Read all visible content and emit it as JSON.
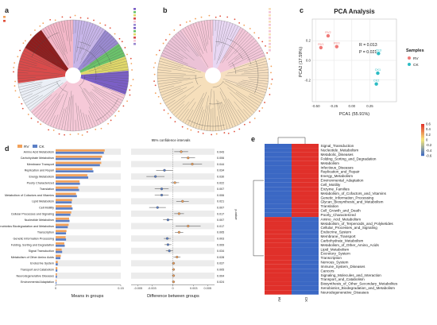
{
  "panel_letters": [
    "a",
    "b",
    "c",
    "d",
    "e"
  ],
  "chart_data": [
    {
      "panel": "c",
      "type": "scatter",
      "title": "PCA Analysis",
      "xlabel": "PCA1 (55.91%)",
      "ylabel": "PCA2 (17.59%)",
      "xlim": [
        -0.55,
        0.62
      ],
      "ylim": [
        -0.42,
        0.42
      ],
      "x_ticks": [
        "-0.50",
        "-0.25",
        "0.00",
        "0.25"
      ],
      "y_ticks": [
        "-0.2",
        "0.0",
        "0.2"
      ],
      "annotations": [
        "R = 0.013",
        "P = 0.021"
      ],
      "legend_title": "Samples",
      "legend_position": "right",
      "series": [
        {
          "name": "RV",
          "color": "#f07a78",
          "points": [
            {
              "x": -0.43,
              "y": 0.13,
              "label": "RV1"
            },
            {
              "x": -0.33,
              "y": 0.25,
              "label": "RV2"
            },
            {
              "x": -0.21,
              "y": 0.14,
              "label": "RV3"
            }
          ]
        },
        {
          "name": "CK",
          "color": "#2cbcc4",
          "points": [
            {
              "x": 0.37,
              "y": 0.07,
              "label": "CK3"
            },
            {
              "x": 0.36,
              "y": -0.13,
              "label": "CK1"
            },
            {
              "x": 0.34,
              "y": -0.24,
              "label": "CK2"
            }
          ]
        }
      ]
    },
    {
      "panel": "d",
      "type": "bar",
      "xlabel_left": "Means in groups",
      "xlabel_right": "Difference between groups",
      "ci_title": "95% confidence intervals",
      "right_axis_label": "p-value",
      "left_xlim": [
        0,
        0.15
      ],
      "left_ticks": [
        "0",
        "0.15"
      ],
      "right_xlim": [
        -0.006,
        0.006
      ],
      "right_ticks": [
        "-0.005",
        "-0.003",
        "0",
        "0.003",
        "0.005"
      ],
      "legend": [
        {
          "name": "RV",
          "color": "#f2a15a"
        },
        {
          "name": "CK",
          "color": "#5b7fc6"
        }
      ],
      "categories": [
        "Amino Acid Metabolism",
        "Carbohydrate Metabolism",
        "Membrane Transport",
        "Replication and Repair",
        "Energy Metabolism",
        "Poorly Characterized",
        "Translation",
        "Metabolism of Cofactors and Vitamins",
        "Lipid Metabolism",
        "Cell Motility",
        "Cellular Processes and Signaling",
        "Nucleotide Metabolism",
        "Xenobiotics Biodegradation and Metabolism",
        "Transcription",
        "Genetic Information Processing",
        "Folding, Sorting and Degradation",
        "Signal Transduction",
        "Metabolism of Other Amino Acids",
        "Endocrine System",
        "Transport and Catabolism",
        "Neurodegenerative Diseases",
        "Environmental Adaptation"
      ],
      "rv_values": [
        0.113,
        0.107,
        0.105,
        0.085,
        0.073,
        0.055,
        0.052,
        0.047,
        0.038,
        0.037,
        0.036,
        0.031,
        0.03,
        0.025,
        0.023,
        0.02,
        0.014,
        0.012,
        0.005,
        0.004,
        0.003,
        0.002
      ],
      "ck_values": [
        0.111,
        0.104,
        0.102,
        0.087,
        0.075,
        0.056,
        0.054,
        0.049,
        0.037,
        0.039,
        0.034,
        0.032,
        0.028,
        0.024,
        0.024,
        0.021,
        0.015,
        0.011,
        0.005,
        0.004,
        0.003,
        0.002
      ],
      "difference": [
        0.0012,
        0.0022,
        0.0028,
        -0.0012,
        -0.0025,
        0.0003,
        -0.0016,
        -0.0016,
        0.0014,
        -0.0022,
        0.0009,
        -0.0007,
        0.0022,
        0.0009,
        -0.0008,
        -0.0007,
        -0.0005,
        0.0006,
        0.0001,
        0.0001,
        0.0001,
        0.0001
      ],
      "ci_low": [
        0.0002,
        0.0012,
        0.0014,
        -0.0024,
        -0.0038,
        -0.0003,
        -0.0026,
        -0.0026,
        0.0005,
        -0.0034,
        0.0002,
        -0.0014,
        0.0004,
        0.0003,
        -0.0013,
        -0.0012,
        -0.001,
        0.0001,
        -0.0001,
        -0.0001,
        -0.0001,
        -0.0001
      ],
      "ci_high": [
        0.0022,
        0.0032,
        0.0042,
        0.0,
        -0.0012,
        0.0009,
        -0.0006,
        -0.0006,
        0.0023,
        -0.001,
        0.0016,
        0.0,
        0.004,
        0.0015,
        -0.0003,
        -0.0002,
        0.0,
        0.0011,
        0.0003,
        0.0003,
        0.0003,
        0.0003
      ],
      "p_values": [
        "0.043",
        "0.006",
        "0.044",
        "0.034",
        "0.030",
        "0.022",
        "0.007",
        "0.006",
        "0.021",
        "0.007",
        "0.017",
        "0.007",
        "0.017",
        "0.005",
        "0.003",
        "0.009",
        "0.034",
        "0.028",
        "0.037",
        "0.005",
        "0.004",
        "0.024"
      ]
    },
    {
      "panel": "e",
      "type": "heatmap",
      "columns": [
        "RV",
        "CK"
      ],
      "color_scale": {
        "min": -0.6,
        "max": 0.6,
        "low_color": "#3b68c4",
        "mid_color": "#f6e77a",
        "high_color": "#e0302a"
      },
      "legend_ticks": [
        "0.6",
        "0.4",
        "0.2",
        "0",
        "-0.2",
        "-0.4",
        "-0.6"
      ],
      "rows": [
        "Signal_Transduction",
        "Nucleotide_Metabolism",
        "Metabolic_Diseases",
        "Folding_Sorting_and_Degradation",
        "Metabolism",
        "Infectious_Diseases",
        "Replication_and_Repair",
        "Energy_Metabolism",
        "Environmental_Adaptation",
        "Cell_Motility",
        "Enzyme_Families",
        "Metabolism_of_Cofactors_and_Vitamins",
        "Genetic_Information_Processing",
        "Glycan_Biosynthesis_and_Metabolism",
        "Translation",
        "Cell_Growth_and_Death",
        "Poorly_Characterized",
        "Amino_Acid_Metabolism",
        "Metabolism_of_Terpenoids_and_Polyketides",
        "Cellular_Processes_and_Signaling",
        "Endocrine_System",
        "Membrane_Transport",
        "Carbohydrate_Metabolism",
        "Metabolism_of_Other_Amino_Acids",
        "Lipid_Metabolism",
        "Excretory_System",
        "Transcription",
        "Nervous_System",
        "Immune_System_Diseases",
        "Cancers",
        "Signaling_Molecules_and_Interaction",
        "Transport_and_Catabolism",
        "Biosynthesis_of_Other_Secondary_Metabolites",
        "Xenobiotics_Biodegradation_and_Metabolism",
        "Neurodegenerative_Diseases"
      ],
      "values": [
        [
          -0.6,
          0.6
        ],
        [
          -0.6,
          0.6
        ],
        [
          -0.6,
          0.6
        ],
        [
          -0.6,
          0.6
        ],
        [
          -0.6,
          0.6
        ],
        [
          -0.6,
          0.6
        ],
        [
          -0.6,
          0.6
        ],
        [
          -0.6,
          0.6
        ],
        [
          -0.6,
          0.6
        ],
        [
          -0.6,
          0.6
        ],
        [
          -0.6,
          0.6
        ],
        [
          -0.6,
          0.6
        ],
        [
          -0.6,
          0.6
        ],
        [
          -0.6,
          0.6
        ],
        [
          -0.6,
          0.6
        ],
        [
          -0.6,
          0.6
        ],
        [
          -0.6,
          0.6
        ],
        [
          0.6,
          -0.6
        ],
        [
          0.6,
          -0.6
        ],
        [
          0.6,
          -0.6
        ],
        [
          0.6,
          -0.6
        ],
        [
          0.6,
          -0.6
        ],
        [
          0.6,
          -0.6
        ],
        [
          0.6,
          -0.6
        ],
        [
          0.6,
          -0.6
        ],
        [
          0.6,
          -0.6
        ],
        [
          0.6,
          -0.6
        ],
        [
          0.6,
          -0.6
        ],
        [
          0.6,
          -0.6
        ],
        [
          0.6,
          -0.6
        ],
        [
          0.6,
          -0.6
        ],
        [
          0.6,
          -0.6
        ],
        [
          0.6,
          -0.6
        ],
        [
          0.6,
          -0.6
        ],
        [
          0.6,
          -0.6
        ]
      ]
    }
  ]
}
